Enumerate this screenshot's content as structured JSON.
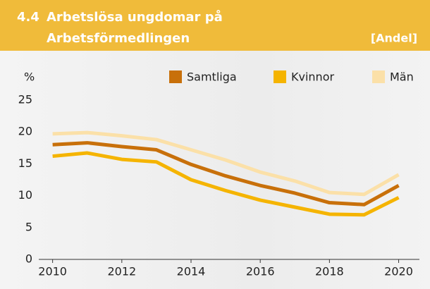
{
  "chart_data": {
    "type": "line",
    "number": "4.4",
    "title": "Arbetslösa ungdomar på",
    "title_line2": "Arbetsförmedlingen",
    "unit_note": "[Andel]",
    "ylabel": "%",
    "x": [
      2010,
      2011,
      2012,
      2013,
      2014,
      2015,
      2016,
      2017,
      2018,
      2019,
      2020
    ],
    "xlim": [
      2009.6,
      2020.6
    ],
    "xticks": [
      2010,
      2012,
      2014,
      2016,
      2018,
      2020
    ],
    "ylim": [
      0,
      25
    ],
    "yticks": [
      0,
      5,
      10,
      15,
      20,
      25
    ],
    "grid": false,
    "legend": "top",
    "series": [
      {
        "name": "Samtliga",
        "color": "#c8700a",
        "values": [
          18.0,
          18.3,
          17.7,
          17.2,
          14.9,
          13.1,
          11.6,
          10.4,
          8.9,
          8.6,
          11.6
        ]
      },
      {
        "name": "Kvinnor",
        "color": "#f5b400",
        "values": [
          16.2,
          16.7,
          15.7,
          15.3,
          12.5,
          10.8,
          9.3,
          8.2,
          7.1,
          7.0,
          9.7
        ]
      },
      {
        "name": "Män",
        "color": "#fbe0a8",
        "values": [
          19.7,
          19.9,
          19.4,
          18.8,
          17.2,
          15.6,
          13.7,
          12.3,
          10.5,
          10.2,
          13.3
        ]
      }
    ]
  }
}
